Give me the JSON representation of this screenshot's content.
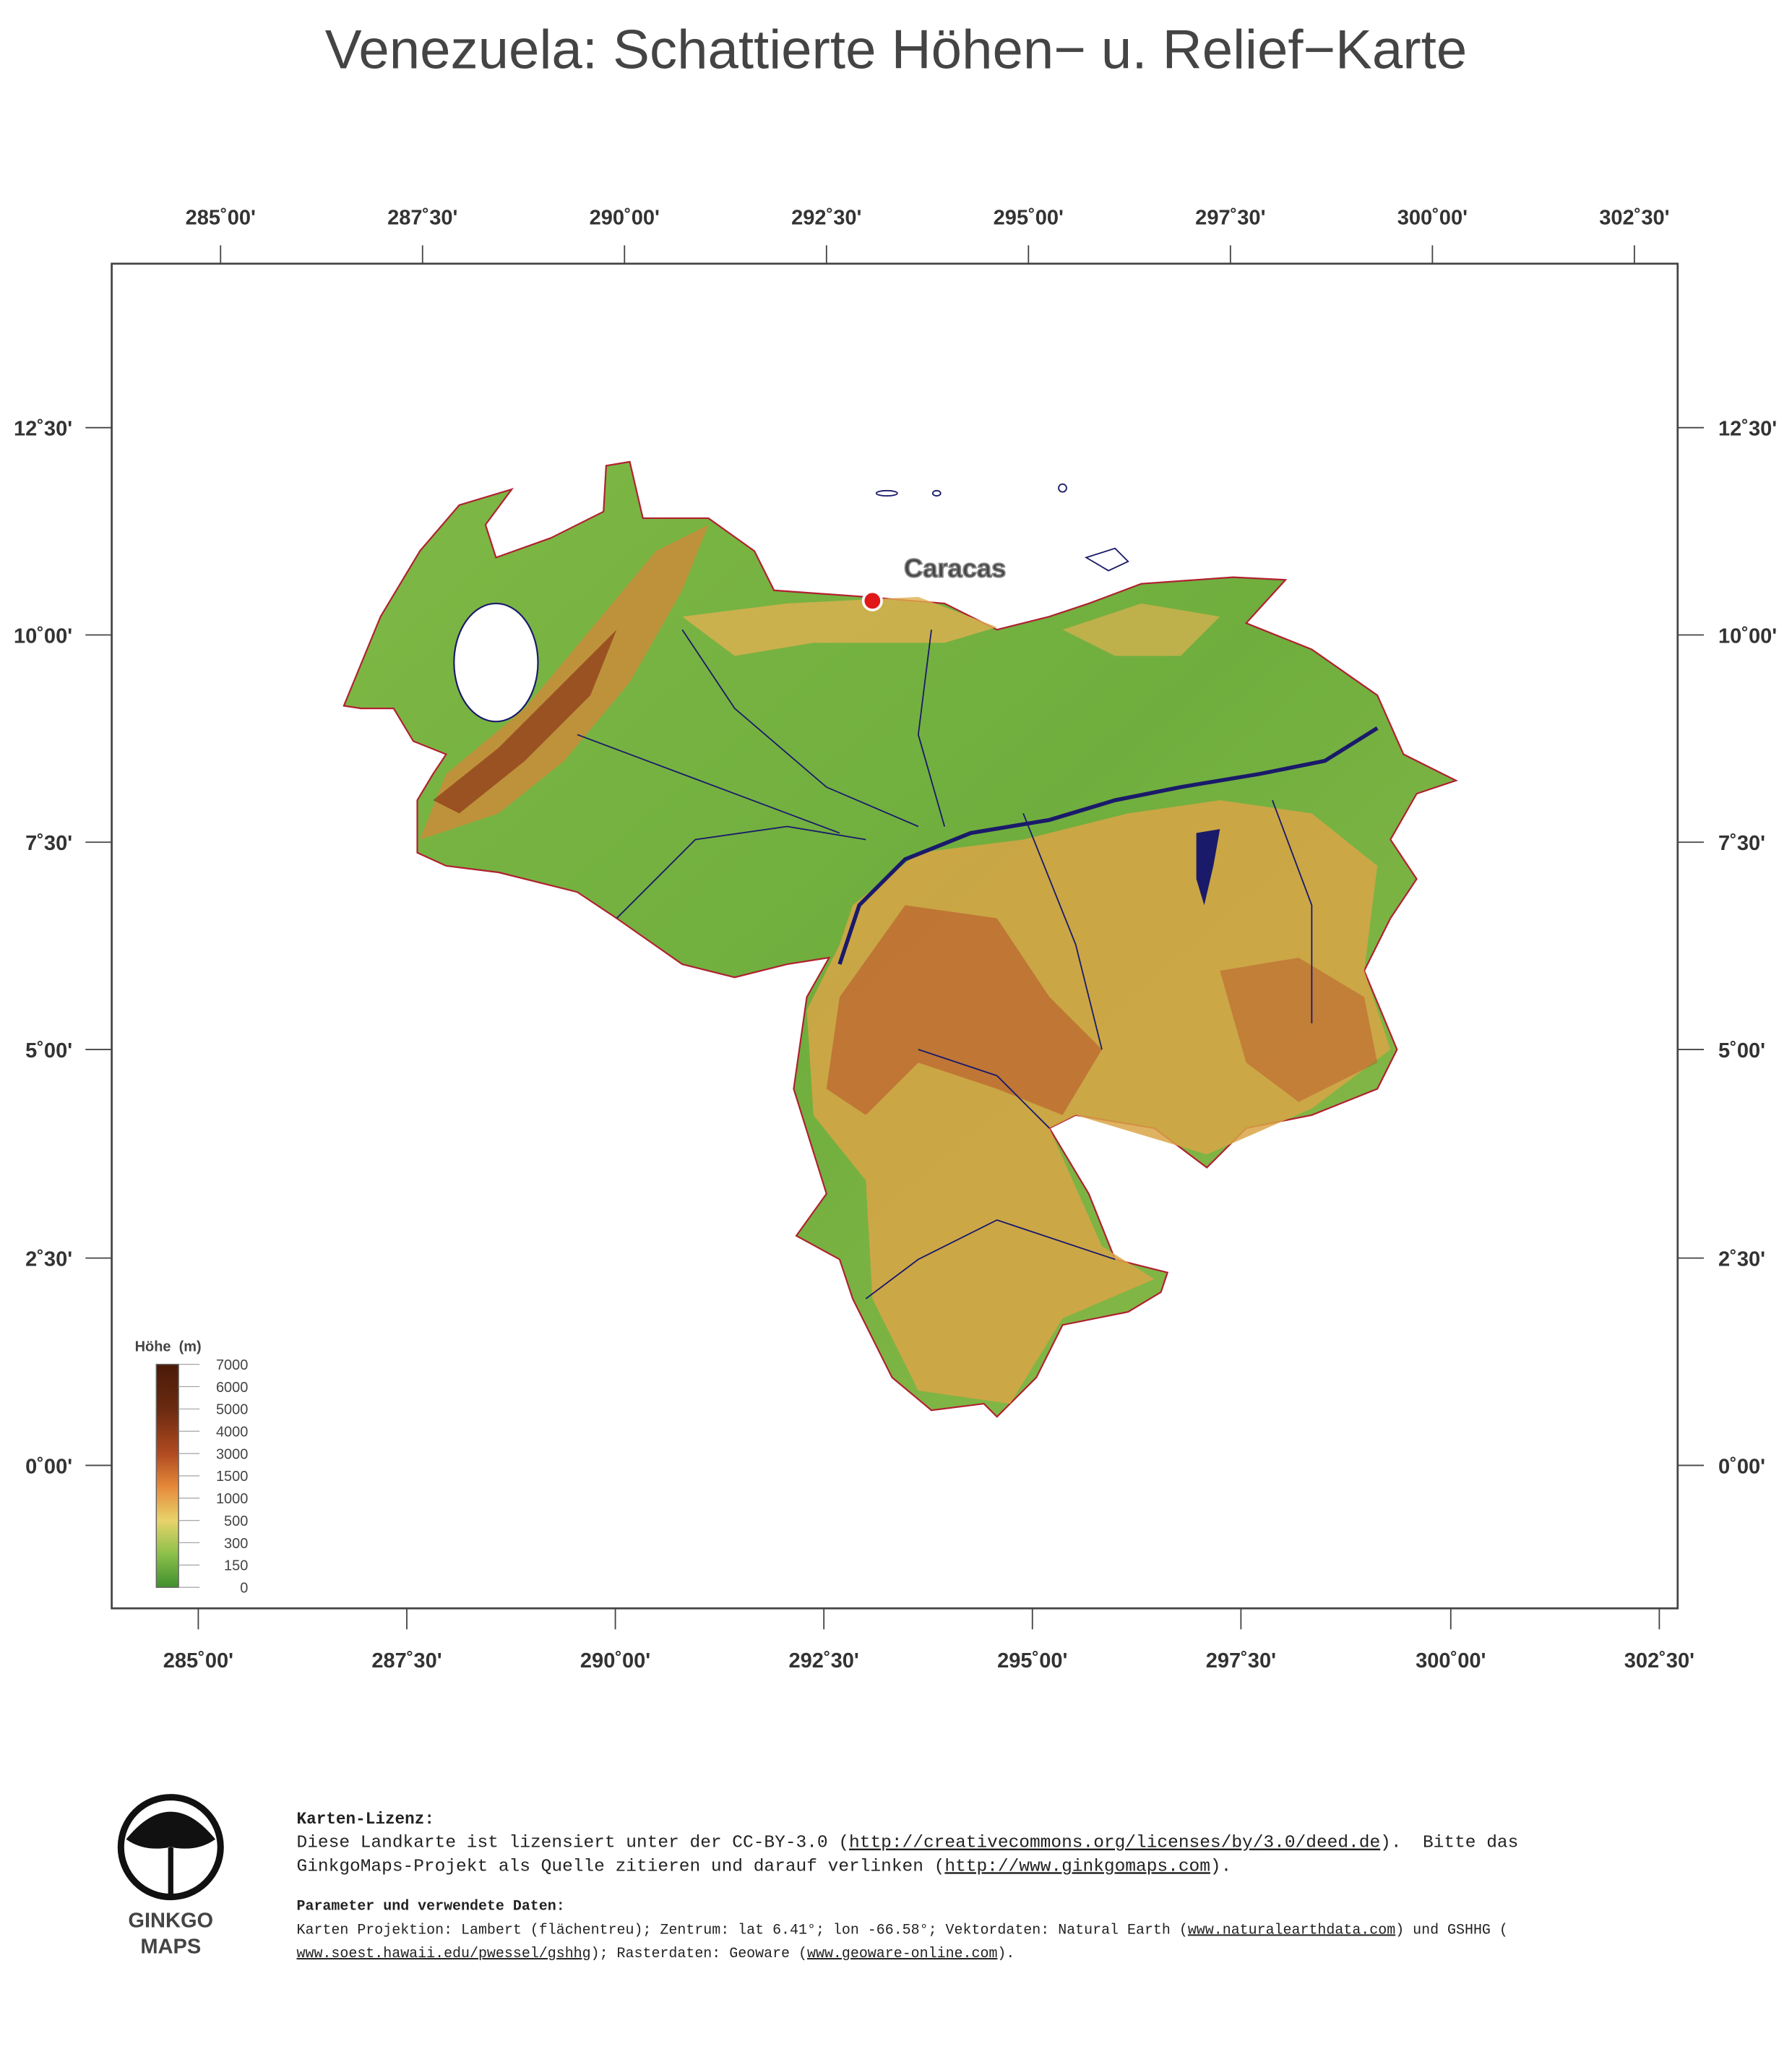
{
  "title": "Venezuela: Schattierte Höhen− u. Relief−Karte",
  "longitude_labels": [
    "285˚00'",
    "287˚30'",
    "290˚00'",
    "292˚30'",
    "295˚00'",
    "297˚30'",
    "300˚00'",
    "302˚30'"
  ],
  "latitude_labels": [
    "12˚30'",
    "10˚00'",
    "7˚30'",
    "5˚00'",
    "2˚30'",
    "0˚00'"
  ],
  "city": "Caracas",
  "legend": {
    "title": "Höhe  (m)",
    "ticks": [
      7000,
      6000,
      5000,
      4000,
      3000,
      1500,
      1000,
      500,
      300,
      150,
      0
    ]
  },
  "logo": {
    "line1": "GINKGO",
    "line2": "MAPS"
  },
  "license": {
    "heading": "Karten-Lizenz:",
    "line1": [
      "Diese Landkarte ist lizensiert unter der CC-BY-3.0 (",
      "http://creativecommons.org/licenses/by/3.0/deed.de",
      ").  Bitte das"
    ],
    "line2": [
      "GinkgoMaps-Projekt als Quelle zitieren und darauf verlinken (",
      "http://www.ginkgomaps.com",
      ")."
    ]
  },
  "parameters": {
    "heading": "Parameter und verwendete Daten:",
    "line1": [
      "Karten Projektion: Lambert (flächentreu); Zentrum: lat 6.41°; lon -66.58°; Vektordaten: Natural Earth (",
      "www.naturalearthdata.com",
      ") und GSHHG ("
    ],
    "line2": [
      "www.soest.hawaii.edu/pwessel/gshhg",
      "); Rasterdaten: Geoware (",
      "www.geoware-online.com",
      ")."
    ]
  }
}
